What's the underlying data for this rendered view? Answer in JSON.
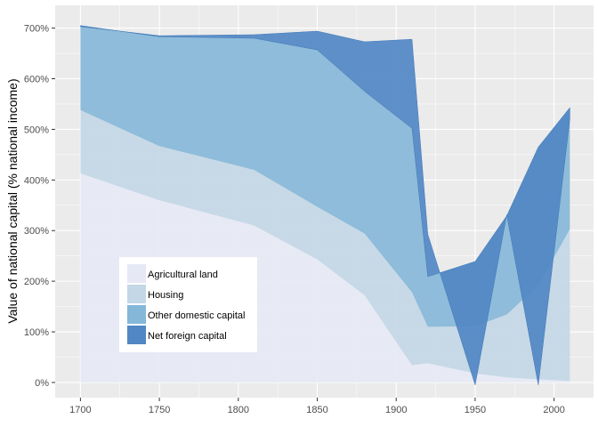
{
  "chart_data": {
    "type": "area",
    "title": "",
    "xlabel": "",
    "ylabel": "Value of national capital (% national income)",
    "xlim": [
      1684,
      2025
    ],
    "ylim": [
      -30,
      745
    ],
    "x_ticks": [
      1700,
      1750,
      1800,
      1850,
      1900,
      1950,
      2000
    ],
    "y_ticks": [
      0,
      100,
      200,
      300,
      400,
      500,
      600,
      700
    ],
    "y_tick_labels": [
      "0%",
      "100%",
      "200%",
      "300%",
      "400%",
      "500%",
      "600%",
      "700%"
    ],
    "grid": true,
    "legend_position": "bottom-left",
    "x": [
      1700,
      1750,
      1810,
      1850,
      1880,
      1910,
      1920,
      1950,
      1970,
      1990,
      2010
    ],
    "series": [
      {
        "name": "Agricultural land",
        "color": "#e6e9f5",
        "values": [
          413,
          360,
          310,
          243,
          172,
          34,
          38,
          18,
          10,
          6,
          3
        ]
      },
      {
        "name": "Housing",
        "color": "#c3d7e6",
        "values": [
          125,
          107,
          110,
          104,
          122,
          144,
          72,
          93,
          124,
          186,
          300
        ]
      },
      {
        "name": "Other domestic capital",
        "color": "#85b7d8",
        "values": [
          167,
          216,
          260,
          310,
          281,
          324,
          99,
          128,
          195,
          273,
          240
        ]
      },
      {
        "name": "Net foreign capital",
        "color": "#5187c4",
        "values": [
          -2,
          2,
          7,
          37,
          98,
          176,
          84,
          -244,
          2,
          -470,
          -22
        ]
      }
    ]
  }
}
